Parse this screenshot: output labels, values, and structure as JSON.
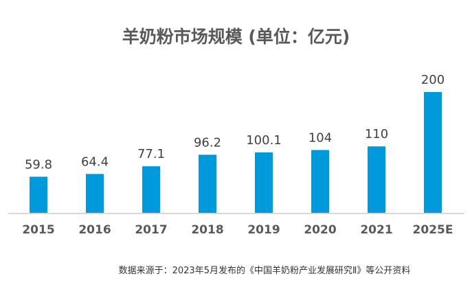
{
  "chart_data": {
    "type": "bar",
    "title": "羊奶粉市场规模 (单位：亿元)",
    "categories": [
      "2015",
      "2016",
      "2017",
      "2018",
      "2019",
      "2020",
      "2021",
      "2025E"
    ],
    "values": [
      59.8,
      64.4,
      77.1,
      96.2,
      100.1,
      104,
      110,
      200
    ],
    "data_labels": [
      "59.8",
      "64.4",
      "77.1",
      "96.2",
      "100.1",
      "104",
      "110",
      "200"
    ],
    "xlabel": "",
    "ylabel": "",
    "ylim": [
      0,
      200
    ],
    "grid": false,
    "legend": "none",
    "bar_color": "#0099dc",
    "source": "数据来源于：2023年5月发布的《中国羊奶粉产业发展研究Ⅱ》等公开资料"
  }
}
